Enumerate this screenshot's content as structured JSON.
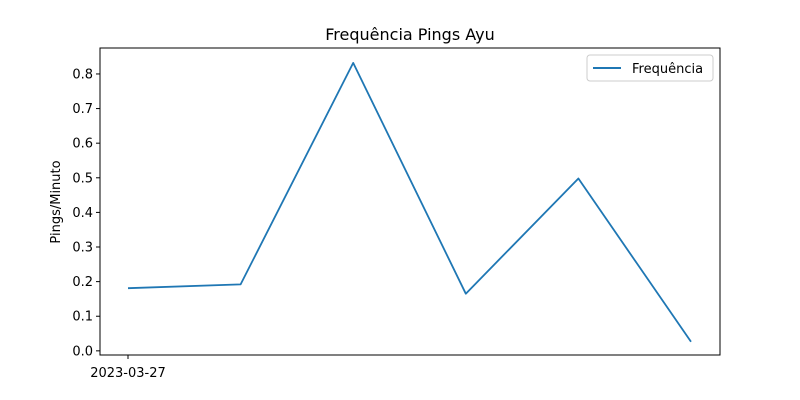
{
  "chart_data": {
    "type": "line",
    "title": "Frequência Pings Ayu",
    "xlabel": "",
    "ylabel": "Pings/Minuto",
    "x_tick_labels": [
      "2023-03-27"
    ],
    "x_tick_indices": [
      0
    ],
    "yticks": [
      0.0,
      0.1,
      0.2,
      0.3,
      0.4,
      0.5,
      0.6,
      0.7,
      0.8
    ],
    "ytick_labels": [
      "0.0",
      "0.1",
      "0.2",
      "0.3",
      "0.4",
      "0.5",
      "0.6",
      "0.7",
      "0.8"
    ],
    "ylim": [
      -0.012,
      0.875
    ],
    "series": [
      {
        "name": "Frequência",
        "color": "#1f77b4",
        "values": [
          0.181,
          0.192,
          0.832,
          0.165,
          0.498,
          0.026
        ]
      }
    ],
    "legend_position": "top-right",
    "grid": false
  }
}
